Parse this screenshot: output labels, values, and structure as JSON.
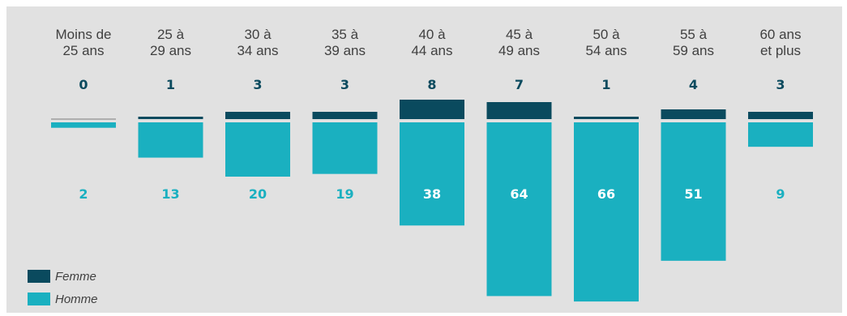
{
  "chart_data": {
    "type": "bar",
    "categories": [
      [
        "Moins de",
        "25 ans"
      ],
      [
        "25 à",
        "29 ans"
      ],
      [
        "30 à",
        "34 ans"
      ],
      [
        "35 à",
        "39 ans"
      ],
      [
        "40 à",
        "44 ans"
      ],
      [
        "45 à",
        "49 ans"
      ],
      [
        "50 à",
        "54 ans"
      ],
      [
        "55 à",
        "59 ans"
      ],
      [
        "60 ans",
        "et plus"
      ]
    ],
    "series": [
      {
        "name": "Femme",
        "values": [
          0,
          1,
          3,
          3,
          8,
          7,
          1,
          4,
          3
        ],
        "color": "#0a4a5e",
        "direction": "up"
      },
      {
        "name": "Homme",
        "values": [
          2,
          13,
          20,
          19,
          38,
          64,
          66,
          51,
          9
        ],
        "color": "#1ab0c0",
        "direction": "down"
      }
    ],
    "title": "",
    "xlabel": "",
    "ylabel": "",
    "grid": false,
    "legend": "bottom-left"
  }
}
